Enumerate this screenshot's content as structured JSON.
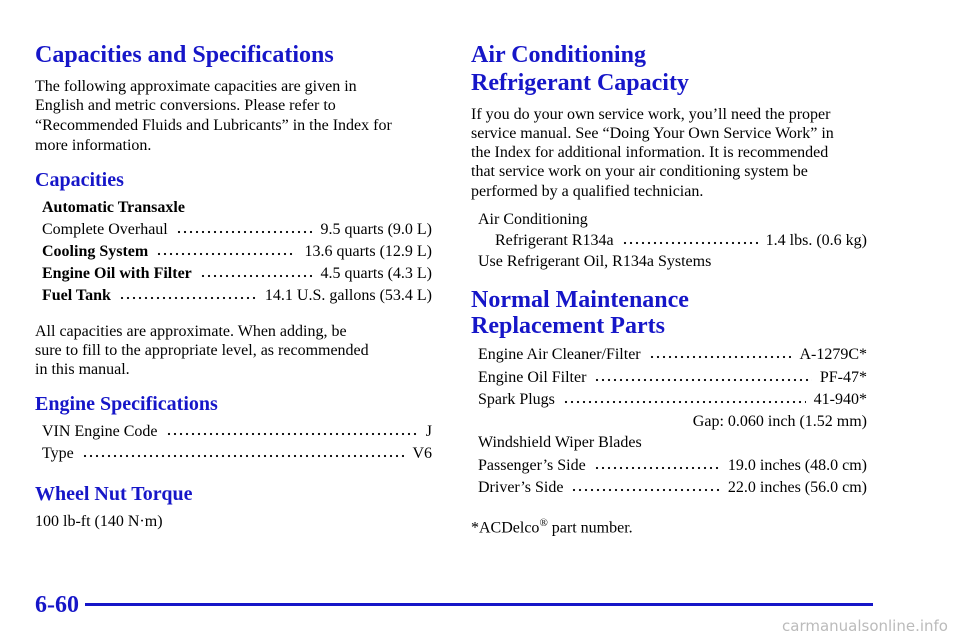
{
  "left": {
    "title": "Capacities and Specifications",
    "intro": [
      "The following approximate capacities are given in",
      "English and metric conversions. Please refer to",
      "“Recommended Fluids and Lubricants” in the Index for",
      "more information."
    ],
    "capacities": {
      "heading": "Capacities",
      "group": "Automatic Transaxle",
      "rows": [
        {
          "label": "Complete Overhaul",
          "value": "9.5 quarts (9.0 L)"
        },
        {
          "label": "Cooling System",
          "value": "13.6 quarts (12.9 L)"
        },
        {
          "label": "Engine Oil with Filter",
          "value": "4.5 quarts (4.3 L)"
        },
        {
          "label": "Fuel Tank",
          "value": "14.1 U.S. gallons (53.4 L)"
        }
      ]
    },
    "note": [
      "All capacities are approximate. When adding, be",
      "sure to fill to the appropriate level, as recommended",
      "in this manual."
    ],
    "engine": {
      "heading": "Engine Specifications",
      "rows": [
        {
          "label": "VIN Engine Code",
          "value": "J"
        },
        {
          "label": "Type",
          "value": "V6"
        }
      ]
    },
    "torque": {
      "heading": "Wheel Nut Torque",
      "text": "100 lb-ft (140 N·m)"
    }
  },
  "right": {
    "title": [
      "Air Conditioning",
      "Refrigerant Capacity"
    ],
    "intro": [
      "If you do your own service work, you’ll need the proper",
      "service manual. See “Doing Your Own Service Work” in",
      "the Index for additional information. It is recommended",
      "that service work on your air conditioning system be",
      "performed by a qualified technician."
    ],
    "refrigerant": {
      "line1": "Air Conditioning",
      "label": "Refrigerant R134a",
      "value": "1.4 lbs. (0.6 kg)",
      "line3": "Use Refrigerant Oil, R134a Systems"
    },
    "parts": {
      "heading": [
        "Normal Maintenance",
        "Replacement Parts"
      ],
      "rows": [
        {
          "label": "Engine Air Cleaner/Filter",
          "value": "A-1279C*"
        },
        {
          "label": "Engine Oil Filter",
          "value": "PF-47*"
        },
        {
          "label": "Spark Plugs",
          "value": "41-940*"
        }
      ],
      "gap": "Gap: 0.060 inch (1.52 mm)",
      "wiper": "Windshield Wiper Blades",
      "wiper_rows": [
        {
          "label": "Passenger’s Side",
          "value": "19.0 inches (48.0 cm)"
        },
        {
          "label": "Driver’s Side",
          "value": "22.0 inches (56.0 cm)"
        }
      ]
    },
    "footnote": {
      "main": "*ACDelco",
      "mark": "®",
      "rest": "part number."
    }
  },
  "footer": {
    "page": "6-60",
    "watermark": "carmanualsonline.info"
  }
}
